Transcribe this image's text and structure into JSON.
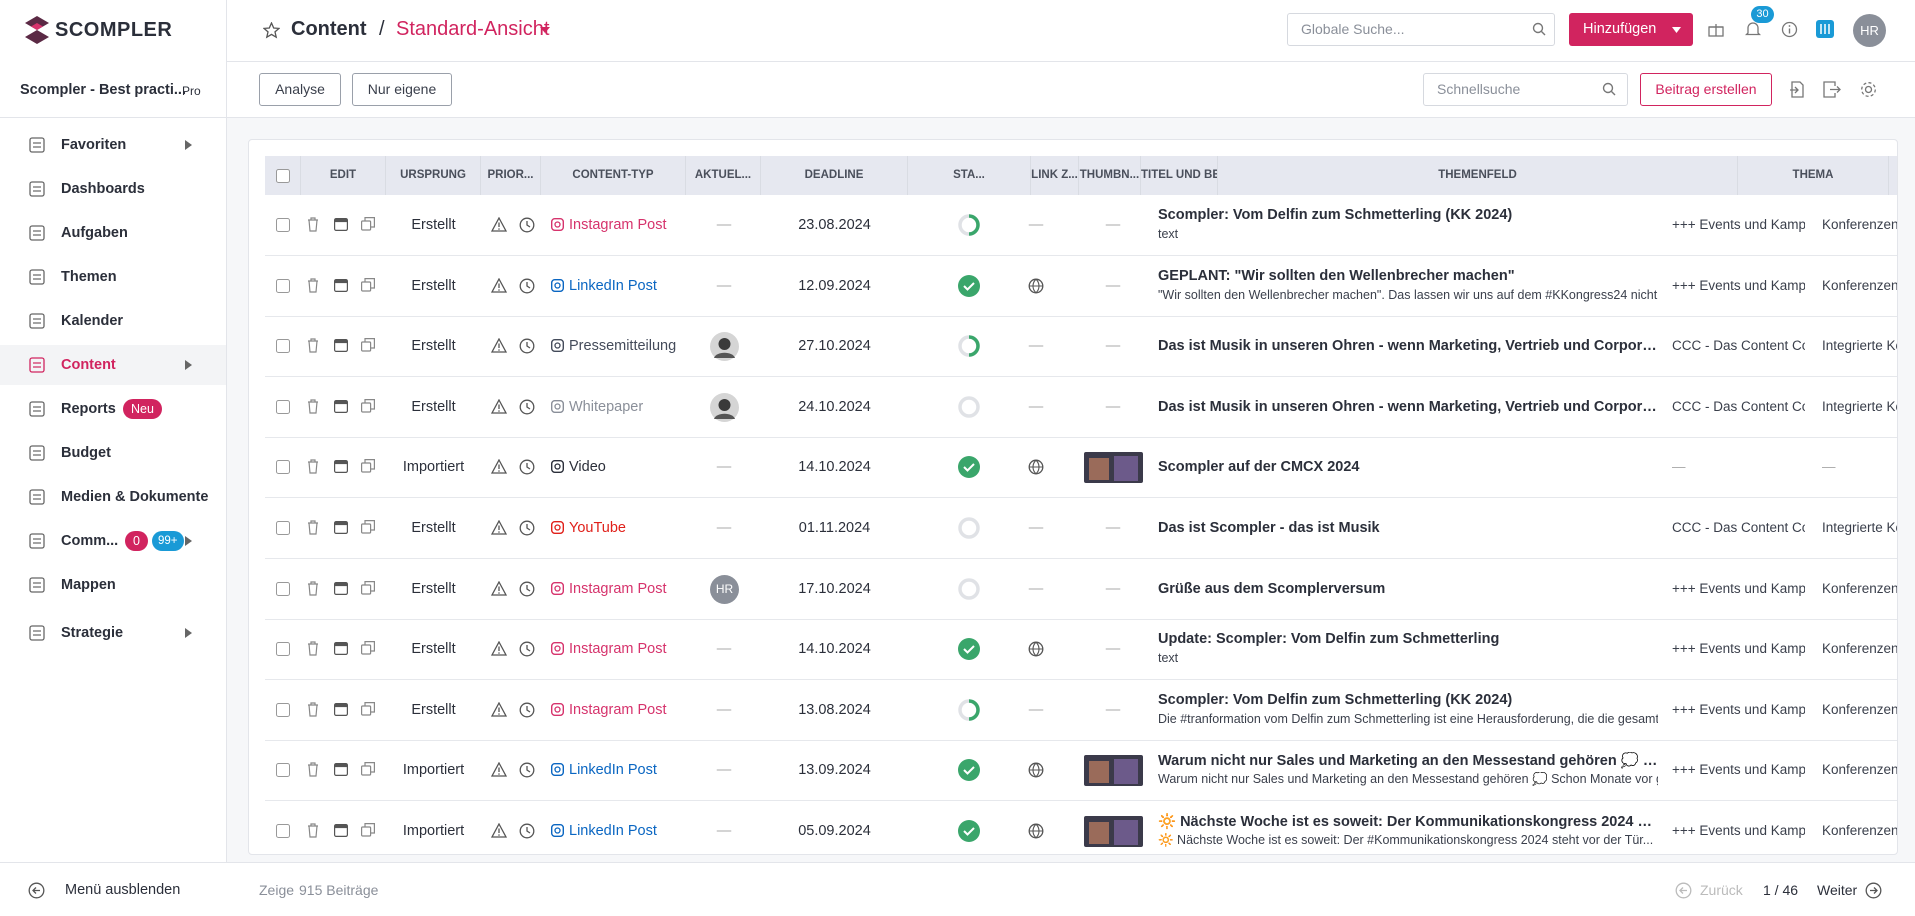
{
  "header": {
    "logo": "SCOMPLER",
    "crumb": "Content",
    "sep": "/",
    "view": "Standard-Ansicht",
    "search": "Globale Suche...",
    "add": "Hinzufügen",
    "notifications": "30",
    "avatar": "HR"
  },
  "sidebar": {
    "workspace": "Scompler - Best practi...",
    "plan": "Pro",
    "items": [
      {
        "label": "Favoriten",
        "arrow": true
      },
      {
        "label": "Dashboards"
      },
      {
        "label": "Aufgaben"
      },
      {
        "label": "Themen"
      },
      {
        "label": "Kalender"
      },
      {
        "label": "Content",
        "active": true,
        "arrow": true
      },
      {
        "label": "Reports",
        "badge": "Neu"
      },
      {
        "label": "Budget"
      },
      {
        "label": "Medien & Dokumente"
      },
      {
        "label": "Comm...",
        "badge": "0",
        "badge2": "99+",
        "arrow": true
      },
      {
        "label": "Mappen"
      },
      {
        "label": "Strategie",
        "arrow": true
      }
    ],
    "hide": "Menü ausblenden"
  },
  "toolbar": {
    "analyse": "Analyse",
    "own": "Nur eigene",
    "quicksearch": "Schnellsuche",
    "create": "Beitrag erstellen"
  },
  "table": {
    "columns": [
      "EDIT",
      "URSPRUNG",
      "PRIOR...",
      "CONTENT-TYP",
      "AKTUEL...",
      "DEADLINE",
      "STA...",
      "LINK Z...",
      "THUMBN...",
      "TITEL UND BESCHREIBUNG",
      "THEMENFELD",
      "THEMA"
    ],
    "rows": [
      {
        "origin": "Erstellt",
        "type": "Instagram Post",
        "type_color": "#d6336c",
        "aktuell": "—",
        "deadline": "23.08.2024",
        "status": "partial",
        "link": "—",
        "thumb": "—",
        "title": "Scompler: Vom Delfin zum Schmetterling (KK 2024)",
        "desc": "text",
        "field": "+++ Events und Kamp...",
        "topic": "Konferenzen und M"
      },
      {
        "origin": "Erstellt",
        "type": "LinkedIn Post",
        "type_color": "#0a66c2",
        "aktuell": "—",
        "deadline": "12.09.2024",
        "status": "done",
        "globe": true,
        "thumb": "—",
        "title": "GEPLANT: \"Wir sollten den Wellenbrecher machen\"",
        "desc": "\"Wir sollten den Wellenbrecher machen\". Das lassen wir uns auf dem #KKongress24 nicht z...",
        "field": "+++ Events und Kamp...",
        "topic": "Konferenzen und M"
      },
      {
        "origin": "Erstellt",
        "type": "Pressemitteilung",
        "type_color": "#444b5a",
        "avatar": "photo",
        "deadline": "27.10.2024",
        "status": "partial",
        "link": "—",
        "thumb": "—",
        "title": "Das ist Musik in unseren Ohren - wenn Marketing, Vertrieb und Corporate Comm...",
        "field": "CCC - Das Content Co...",
        "topic": "Integrierte Kommu"
      },
      {
        "origin": "Erstellt",
        "type": "Whitepaper",
        "type_color": "#8a8f99",
        "avatar": "photo",
        "deadline": "24.10.2024",
        "status": "empty",
        "link": "—",
        "thumb": "—",
        "title": "Das ist Musik in unseren Ohren - wenn Marketing, Vertrieb und Corporate Comm...",
        "field": "CCC - Das Content Co...",
        "topic": "Integrierte Kommu"
      },
      {
        "origin": "Importiert",
        "type": "Video",
        "type_color": "#2b2f3a",
        "aktuell": "—",
        "deadline": "14.10.2024",
        "status": "done",
        "globe": true,
        "thumbnail": true,
        "title": "Scompler auf der CMCX 2024",
        "field": "—",
        "topic": "—"
      },
      {
        "origin": "Erstellt",
        "type": "YouTube",
        "type_color": "#e0201a",
        "aktuell": "—",
        "deadline": "01.11.2024",
        "status": "empty",
        "link": "—",
        "thumb": "—",
        "title": "Das ist Scompler - das ist Musik",
        "field": "CCC - Das Content Co...",
        "topic": "Integrierte Kommu"
      },
      {
        "origin": "Erstellt",
        "type": "Instagram Post",
        "type_color": "#d6336c",
        "aktuell": "HR",
        "avatar": "initials",
        "deadline": "17.10.2024",
        "status": "empty",
        "link": "—",
        "thumb": "—",
        "title": "Grüße aus dem Scomplerversum",
        "field": "+++ Events und Kamp...",
        "topic": "Konferenzen und M"
      },
      {
        "origin": "Erstellt",
        "type": "Instagram Post",
        "type_color": "#d6336c",
        "aktuell": "—",
        "deadline": "14.10.2024",
        "status": "done",
        "globe": true,
        "thumb": "—",
        "title": "Update: Scompler: Vom Delfin zum Schmetterling",
        "desc": "text",
        "field": "+++ Events und Kamp...",
        "topic": "Konferenzen und M"
      },
      {
        "origin": "Erstellt",
        "type": "Instagram Post",
        "type_color": "#d6336c",
        "aktuell": "—",
        "deadline": "13.08.2024",
        "status": "partial",
        "link": "—",
        "thumb": "—",
        "title": "Scompler: Vom Delfin zum Schmetterling (KK 2024)",
        "desc": "Die #tranformation vom Delfin zum Schmetterling ist eine Herausforderung, die die gesamte...",
        "field": "+++ Events und Kamp...",
        "topic": "Konferenzen und M"
      },
      {
        "origin": "Importiert",
        "type": "LinkedIn Post",
        "type_color": "#0a66c2",
        "aktuell": "—",
        "deadline": "13.09.2024",
        "status": "done",
        "globe": true,
        "thumbnail": true,
        "title": "Warum nicht nur Sales und Marketing an den Messestand gehören 💭 Schon Mo...",
        "desc": "Warum nicht nur Sales und Marketing an den Messestand gehören 💭 Schon Monate vor gr...",
        "field": "+++ Events und Kamp...",
        "topic": "Konferenzen und M"
      },
      {
        "origin": "Importiert",
        "type": "LinkedIn Post",
        "type_color": "#0a66c2",
        "aktuell": "—",
        "deadline": "05.09.2024",
        "status": "done",
        "globe": true,
        "thumbnail": true,
        "title": "🔆 Nächste Woche ist es soweit: Der Kommunikationskongress 2024 steht vor de...",
        "desc": "🔆 Nächste Woche ist es soweit: Der #Kommunikationskongress 2024 steht vor der Tür...",
        "field": "+++ Events und Kamp...",
        "topic": "Konferenzen und M"
      }
    ]
  },
  "footer": {
    "show": "Zeige",
    "count": "915 Beiträge",
    "prev": "Zurück",
    "page": "1 / 46",
    "next": "Weiter"
  }
}
